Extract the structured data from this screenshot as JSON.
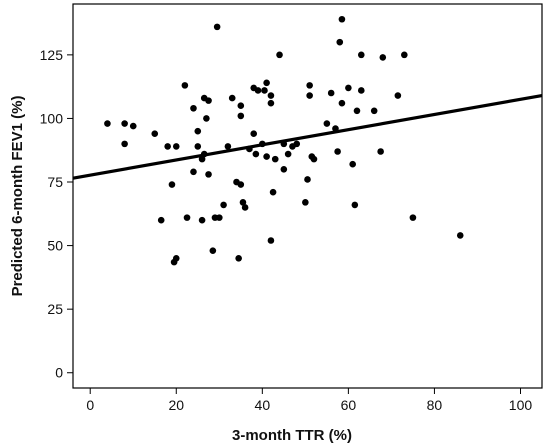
{
  "chart_data": {
    "type": "scatter",
    "title": "",
    "xlabel": "3-month TTR (%)",
    "ylabel": "Predicted 6-month FEV1 (%)",
    "xlim": [
      -4,
      105
    ],
    "ylim": [
      -6,
      145
    ],
    "xticks": [
      0,
      20,
      40,
      60,
      80,
      100
    ],
    "yticks": [
      0,
      25,
      50,
      75,
      100,
      125
    ],
    "xtick_labels": [
      "0",
      "20",
      "40",
      "60",
      "80",
      "100"
    ],
    "ytick_labels": [
      "0",
      "25",
      "50",
      "75",
      "100",
      "125"
    ],
    "grid": false,
    "legend": null,
    "colors": {
      "points": "#000000",
      "line": "#000000",
      "axes": "#000000",
      "background": "#ffffff"
    },
    "series": [
      {
        "values": [
          [
            4,
            98
          ],
          [
            8,
            98
          ],
          [
            8,
            90
          ],
          [
            10,
            97
          ],
          [
            15,
            94
          ],
          [
            16.5,
            60
          ],
          [
            18,
            89
          ],
          [
            19,
            74
          ],
          [
            19.5,
            43.5
          ],
          [
            20,
            45
          ],
          [
            20,
            89
          ],
          [
            22,
            113
          ],
          [
            22.5,
            61
          ],
          [
            24,
            79
          ],
          [
            24,
            104
          ],
          [
            25,
            89
          ],
          [
            25,
            95
          ],
          [
            26,
            60
          ],
          [
            26,
            84
          ],
          [
            26.5,
            86
          ],
          [
            26.5,
            108
          ],
          [
            27,
            100
          ],
          [
            27.5,
            78
          ],
          [
            27.5,
            107
          ],
          [
            28.5,
            48
          ],
          [
            29,
            61
          ],
          [
            29.5,
            136
          ],
          [
            30,
            61
          ],
          [
            31,
            66
          ],
          [
            32,
            89
          ],
          [
            33,
            108
          ],
          [
            34,
            75
          ],
          [
            34.5,
            45
          ],
          [
            35,
            74
          ],
          [
            35,
            101
          ],
          [
            35,
            105
          ],
          [
            35.5,
            67
          ],
          [
            36,
            65
          ],
          [
            37,
            88
          ],
          [
            38,
            94
          ],
          [
            38,
            112
          ],
          [
            38.5,
            86
          ],
          [
            39,
            111
          ],
          [
            40,
            90
          ],
          [
            40.5,
            111
          ],
          [
            41,
            114
          ],
          [
            41,
            85
          ],
          [
            42,
            52
          ],
          [
            42,
            106
          ],
          [
            42,
            109
          ],
          [
            42.5,
            71
          ],
          [
            43,
            84
          ],
          [
            44,
            125
          ],
          [
            45,
            90
          ],
          [
            45,
            80
          ],
          [
            46,
            86
          ],
          [
            47,
            89
          ],
          [
            48,
            90
          ],
          [
            50,
            67
          ],
          [
            50.5,
            76
          ],
          [
            51,
            113
          ],
          [
            51,
            109
          ],
          [
            51.5,
            85
          ],
          [
            52,
            84
          ],
          [
            55,
            98
          ],
          [
            56,
            110
          ],
          [
            57,
            96
          ],
          [
            57.5,
            87
          ],
          [
            58,
            130
          ],
          [
            58.5,
            139
          ],
          [
            58.5,
            106
          ],
          [
            60,
            112
          ],
          [
            61,
            82
          ],
          [
            61.5,
            66
          ],
          [
            62,
            103
          ],
          [
            63,
            111
          ],
          [
            63,
            125
          ],
          [
            66,
            103
          ],
          [
            67.5,
            87
          ],
          [
            68,
            124
          ],
          [
            71.5,
            109
          ],
          [
            73,
            125
          ],
          [
            75,
            61
          ],
          [
            86,
            54
          ]
        ]
      }
    ],
    "fit_line": {
      "x": [
        -4,
        105
      ],
      "y": [
        76.5,
        109
      ]
    }
  }
}
